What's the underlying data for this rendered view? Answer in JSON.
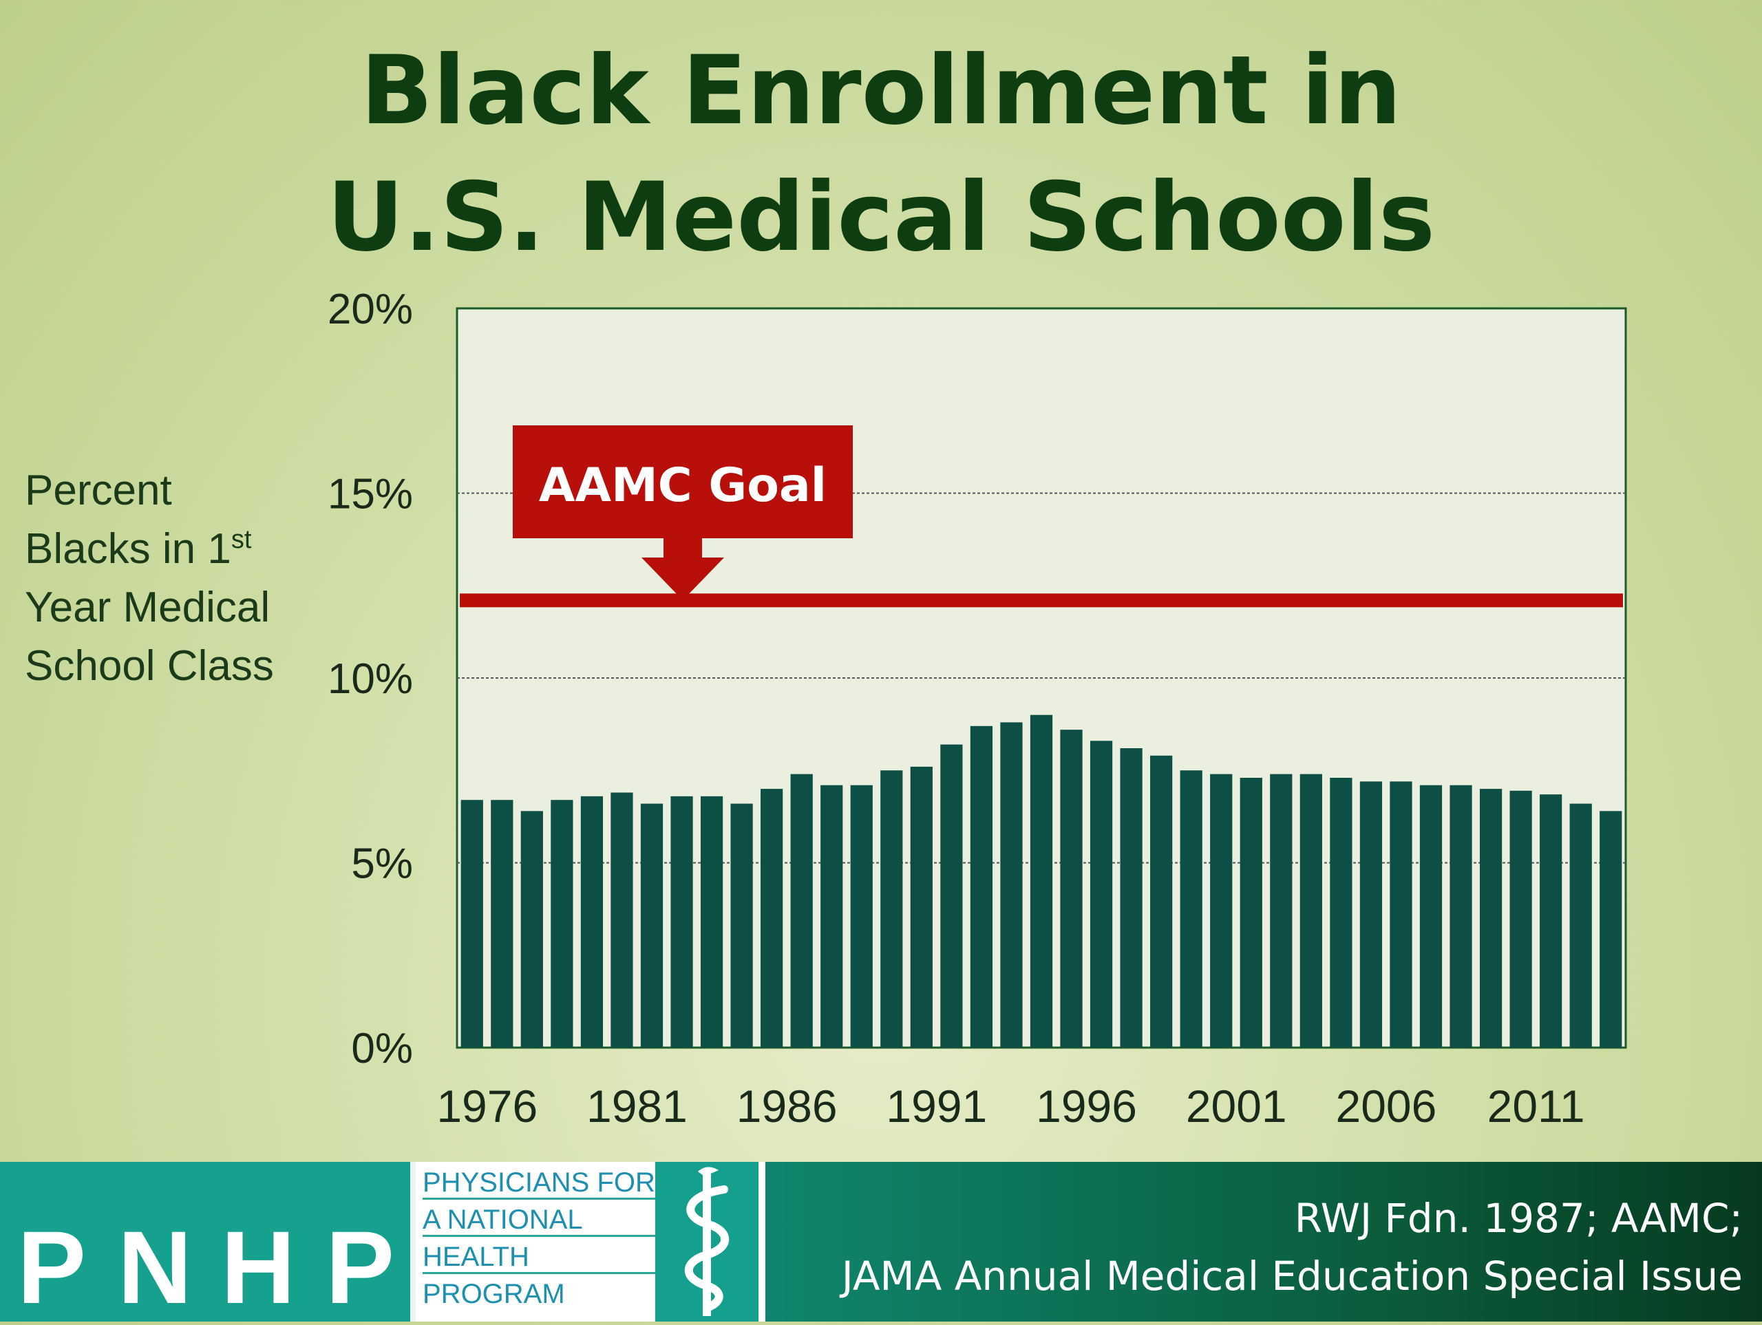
{
  "title": {
    "line1": "Black Enrollment in",
    "line2": "U.S. Medical Schools"
  },
  "ylabel": {
    "line1": "Percent",
    "line2a": "Blacks in 1",
    "line2sup": "st",
    "line3": "Year Medical",
    "line4": "School Class"
  },
  "chart_data": {
    "type": "bar",
    "x_tick_labels": [
      "1976",
      "1981",
      "1986",
      "1991",
      "1996",
      "2001",
      "2006",
      "2011"
    ],
    "y_tick_labels": [
      "0%",
      "5%",
      "10%",
      "15%",
      "20%"
    ],
    "ylim": [
      0,
      20
    ],
    "grid": true,
    "bar_color": "#0d4f45",
    "categories": [
      "1976",
      "1977",
      "1978",
      "1979",
      "1980",
      "1981",
      "1982",
      "1983",
      "1984",
      "1985",
      "1986",
      "1987",
      "1988",
      "1989",
      "1990",
      "1991",
      "1992",
      "1993",
      "1994",
      "1995",
      "1996",
      "1997",
      "1998",
      "1999",
      "2000",
      "2001",
      "2002",
      "2003",
      "2004",
      "2005",
      "2006",
      "2007",
      "2008",
      "2009",
      "2010",
      "2011",
      "2012",
      "2013",
      "2014"
    ],
    "values": [
      6.7,
      6.7,
      6.4,
      6.7,
      6.8,
      6.9,
      6.6,
      6.8,
      6.8,
      6.6,
      7.0,
      7.4,
      7.1,
      7.1,
      7.5,
      7.6,
      8.2,
      8.7,
      8.8,
      9.0,
      8.6,
      8.3,
      8.1,
      7.9,
      7.5,
      7.4,
      7.3,
      7.4,
      7.4,
      7.3,
      7.2,
      7.2,
      7.1,
      7.1,
      7.0,
      6.95,
      6.85,
      6.6,
      6.4
    ],
    "goal": {
      "label": "AAMC Goal",
      "value": 12.1,
      "color": "#b80f0a"
    }
  },
  "source": {
    "line1": "RWJ Fdn. 1987; AAMC;",
    "line2": "JAMA Annual Medical Education Special Issue"
  },
  "logo": {
    "letters": [
      "P",
      "N",
      "H",
      "P"
    ],
    "name_lines": [
      "PHYSICIANS FOR",
      "A NATIONAL",
      "HEALTH",
      "PROGRAM"
    ]
  }
}
